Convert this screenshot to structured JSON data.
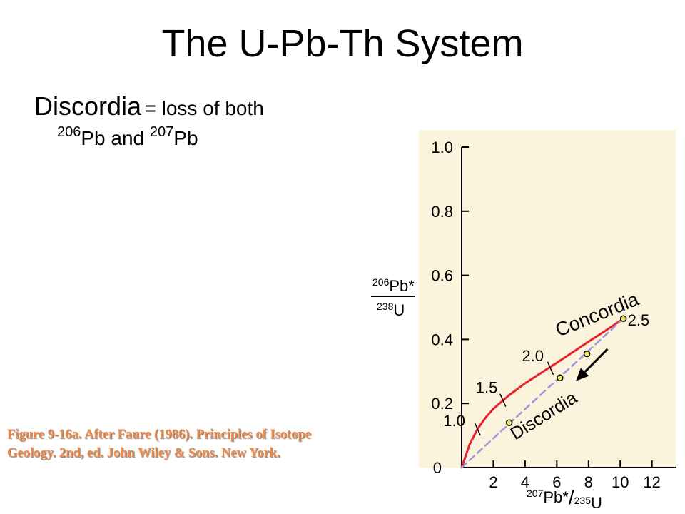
{
  "slide": {
    "title": "The U-Pb-Th System",
    "bullet": {
      "term": "Discordia",
      "definition": "= loss of both",
      "isotope1_mass": "206",
      "isotope1_symbol": "Pb and",
      "isotope2_mass": "207",
      "isotope2_symbol": "Pb"
    },
    "caption": "Figure 9-16a. After Faure (1986). Principles of Isotope Geology. 2nd, ed. John Wiley & Sons. New York."
  },
  "chart_data": {
    "type": "line",
    "background_color": "#fbf3dc",
    "x_ticks": [
      "2",
      "4",
      "6",
      "8",
      "10",
      "12"
    ],
    "y_ticks": [
      "0",
      "0.2",
      "0.4",
      "0.6",
      "0.8",
      "1.0"
    ],
    "origin_label": "0",
    "xlim": [
      0,
      13.5
    ],
    "ylim": [
      0,
      1.0
    ],
    "ylabel": {
      "num_mass": "206",
      "num_sym": "Pb*",
      "den_mass": "238",
      "den_sym": "U"
    },
    "xlabel": {
      "num_mass": "207",
      "num_sym": "Pb*",
      "sep": "/",
      "den_mass": "235",
      "den_sym": "U"
    },
    "series": [
      {
        "name": "Concordia",
        "color": "#e8212b",
        "x": [
          0,
          0.5,
          1.0,
          1.5,
          2.0,
          3.0,
          4.0,
          5.0,
          6.0,
          7.0,
          8.0,
          9.0,
          10.2
        ],
        "y": [
          0,
          0.072,
          0.12,
          0.155,
          0.183,
          0.226,
          0.263,
          0.295,
          0.327,
          0.36,
          0.393,
          0.425,
          0.465
        ]
      },
      {
        "name": "Discordia",
        "color": "#9999dd",
        "dashed": true,
        "x": [
          0,
          10.2
        ],
        "y": [
          0,
          0.465
        ]
      }
    ],
    "age_marks": [
      {
        "label": "1.0",
        "x": 1.0,
        "y": 0.12
      },
      {
        "label": "1.5",
        "x": 2.6,
        "y": 0.21
      },
      {
        "label": "2.0",
        "x": 5.6,
        "y": 0.31
      },
      {
        "label": "2.5",
        "x": 10.2,
        "y": 0.465
      }
    ],
    "points": [
      {
        "x": 3.0,
        "y": 0.14
      },
      {
        "x": 6.2,
        "y": 0.28
      },
      {
        "x": 7.9,
        "y": 0.355
      },
      {
        "x": 10.2,
        "y": 0.465
      }
    ],
    "annotations": [
      "Concordia",
      "Discordia"
    ],
    "arrow": {
      "from": [
        9.2,
        0.37
      ],
      "to": [
        7.2,
        0.27
      ],
      "color": "#000000"
    }
  }
}
